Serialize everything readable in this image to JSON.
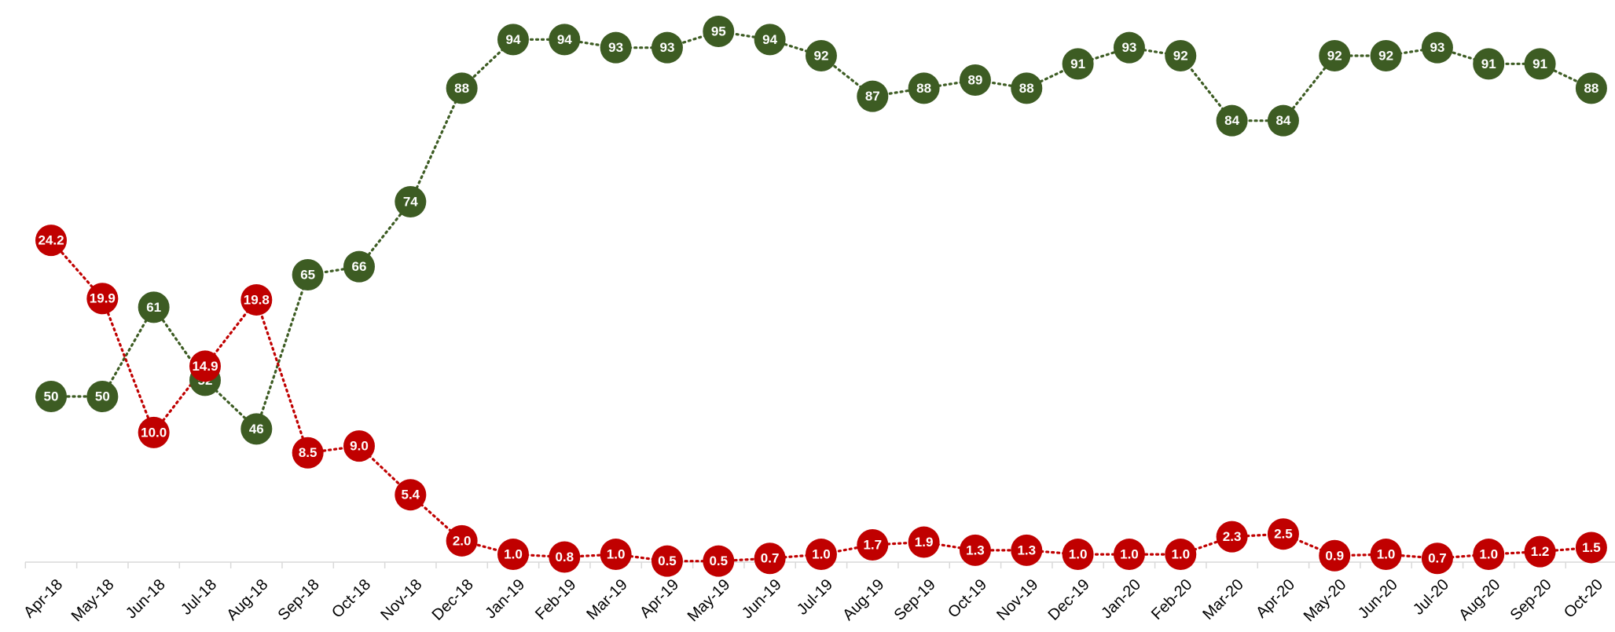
{
  "chart_data": {
    "type": "line",
    "categories": [
      "Apr-18",
      "May-18",
      "Jun-18",
      "Jul-18",
      "Aug-18",
      "Sep-18",
      "Oct-18",
      "Nov-18",
      "Dec-18",
      "Jan-19",
      "Feb-19",
      "Mar-19",
      "Apr-19",
      "May-19",
      "Jun-19",
      "Jul-19",
      "Aug-19",
      "Sep-19",
      "Oct-19",
      "Nov-19",
      "Dec-19",
      "Jan-20",
      "Feb-20",
      "Mar-20",
      "Apr-20",
      "May-20",
      "Jun-20",
      "Jul-20",
      "Aug-20",
      "Sep-20",
      "Oct-20"
    ],
    "series": [
      {
        "color": "#3d5c23",
        "values": [
          50,
          50,
          61,
          52,
          46,
          65,
          66,
          74,
          88,
          94,
          94,
          93,
          93,
          95,
          94,
          92,
          87,
          88,
          89,
          88,
          91,
          93,
          92,
          84,
          84,
          92,
          92,
          93,
          91,
          91,
          88
        ],
        "labels": [
          "50",
          "50",
          "61",
          "52",
          "46",
          "65",
          "66",
          "74",
          "88",
          "94",
          "94",
          "93",
          "93",
          "95",
          "94",
          "92",
          "87",
          "88",
          "89",
          "88",
          "91",
          "93",
          "92",
          "84",
          "84",
          "92",
          "92",
          "93",
          "91",
          "91",
          "88"
        ]
      },
      {
        "color": "#c00000",
        "values": [
          24.2,
          19.9,
          10.0,
          14.9,
          19.8,
          8.5,
          9.0,
          5.4,
          2.0,
          1.0,
          0.8,
          1.0,
          0.5,
          0.5,
          0.7,
          1.0,
          1.7,
          1.9,
          1.3,
          1.3,
          1.0,
          1.0,
          1.0,
          2.3,
          2.5,
          0.9,
          1.0,
          0.7,
          1.0,
          1.2,
          1.5
        ],
        "labels": [
          "24.2",
          "19.9",
          "10.0",
          "14.9",
          "19.8",
          "8.5",
          "9.0",
          "5.4",
          "2.0",
          "1.0",
          "0.8",
          "1.0",
          "0.5",
          "0.5",
          "0.7",
          "1.0",
          "1.7",
          "1.9",
          "1.3",
          "1.3",
          "1.0",
          "1.0",
          "1.0",
          "2.3",
          "2.5",
          "0.9",
          "1.0",
          "0.7",
          "1.0",
          "1.2",
          "1.5"
        ]
      }
    ],
    "title": "",
    "xlabel": "",
    "ylabel": "",
    "grid": false,
    "legend": "none",
    "line_style": "dotted"
  }
}
